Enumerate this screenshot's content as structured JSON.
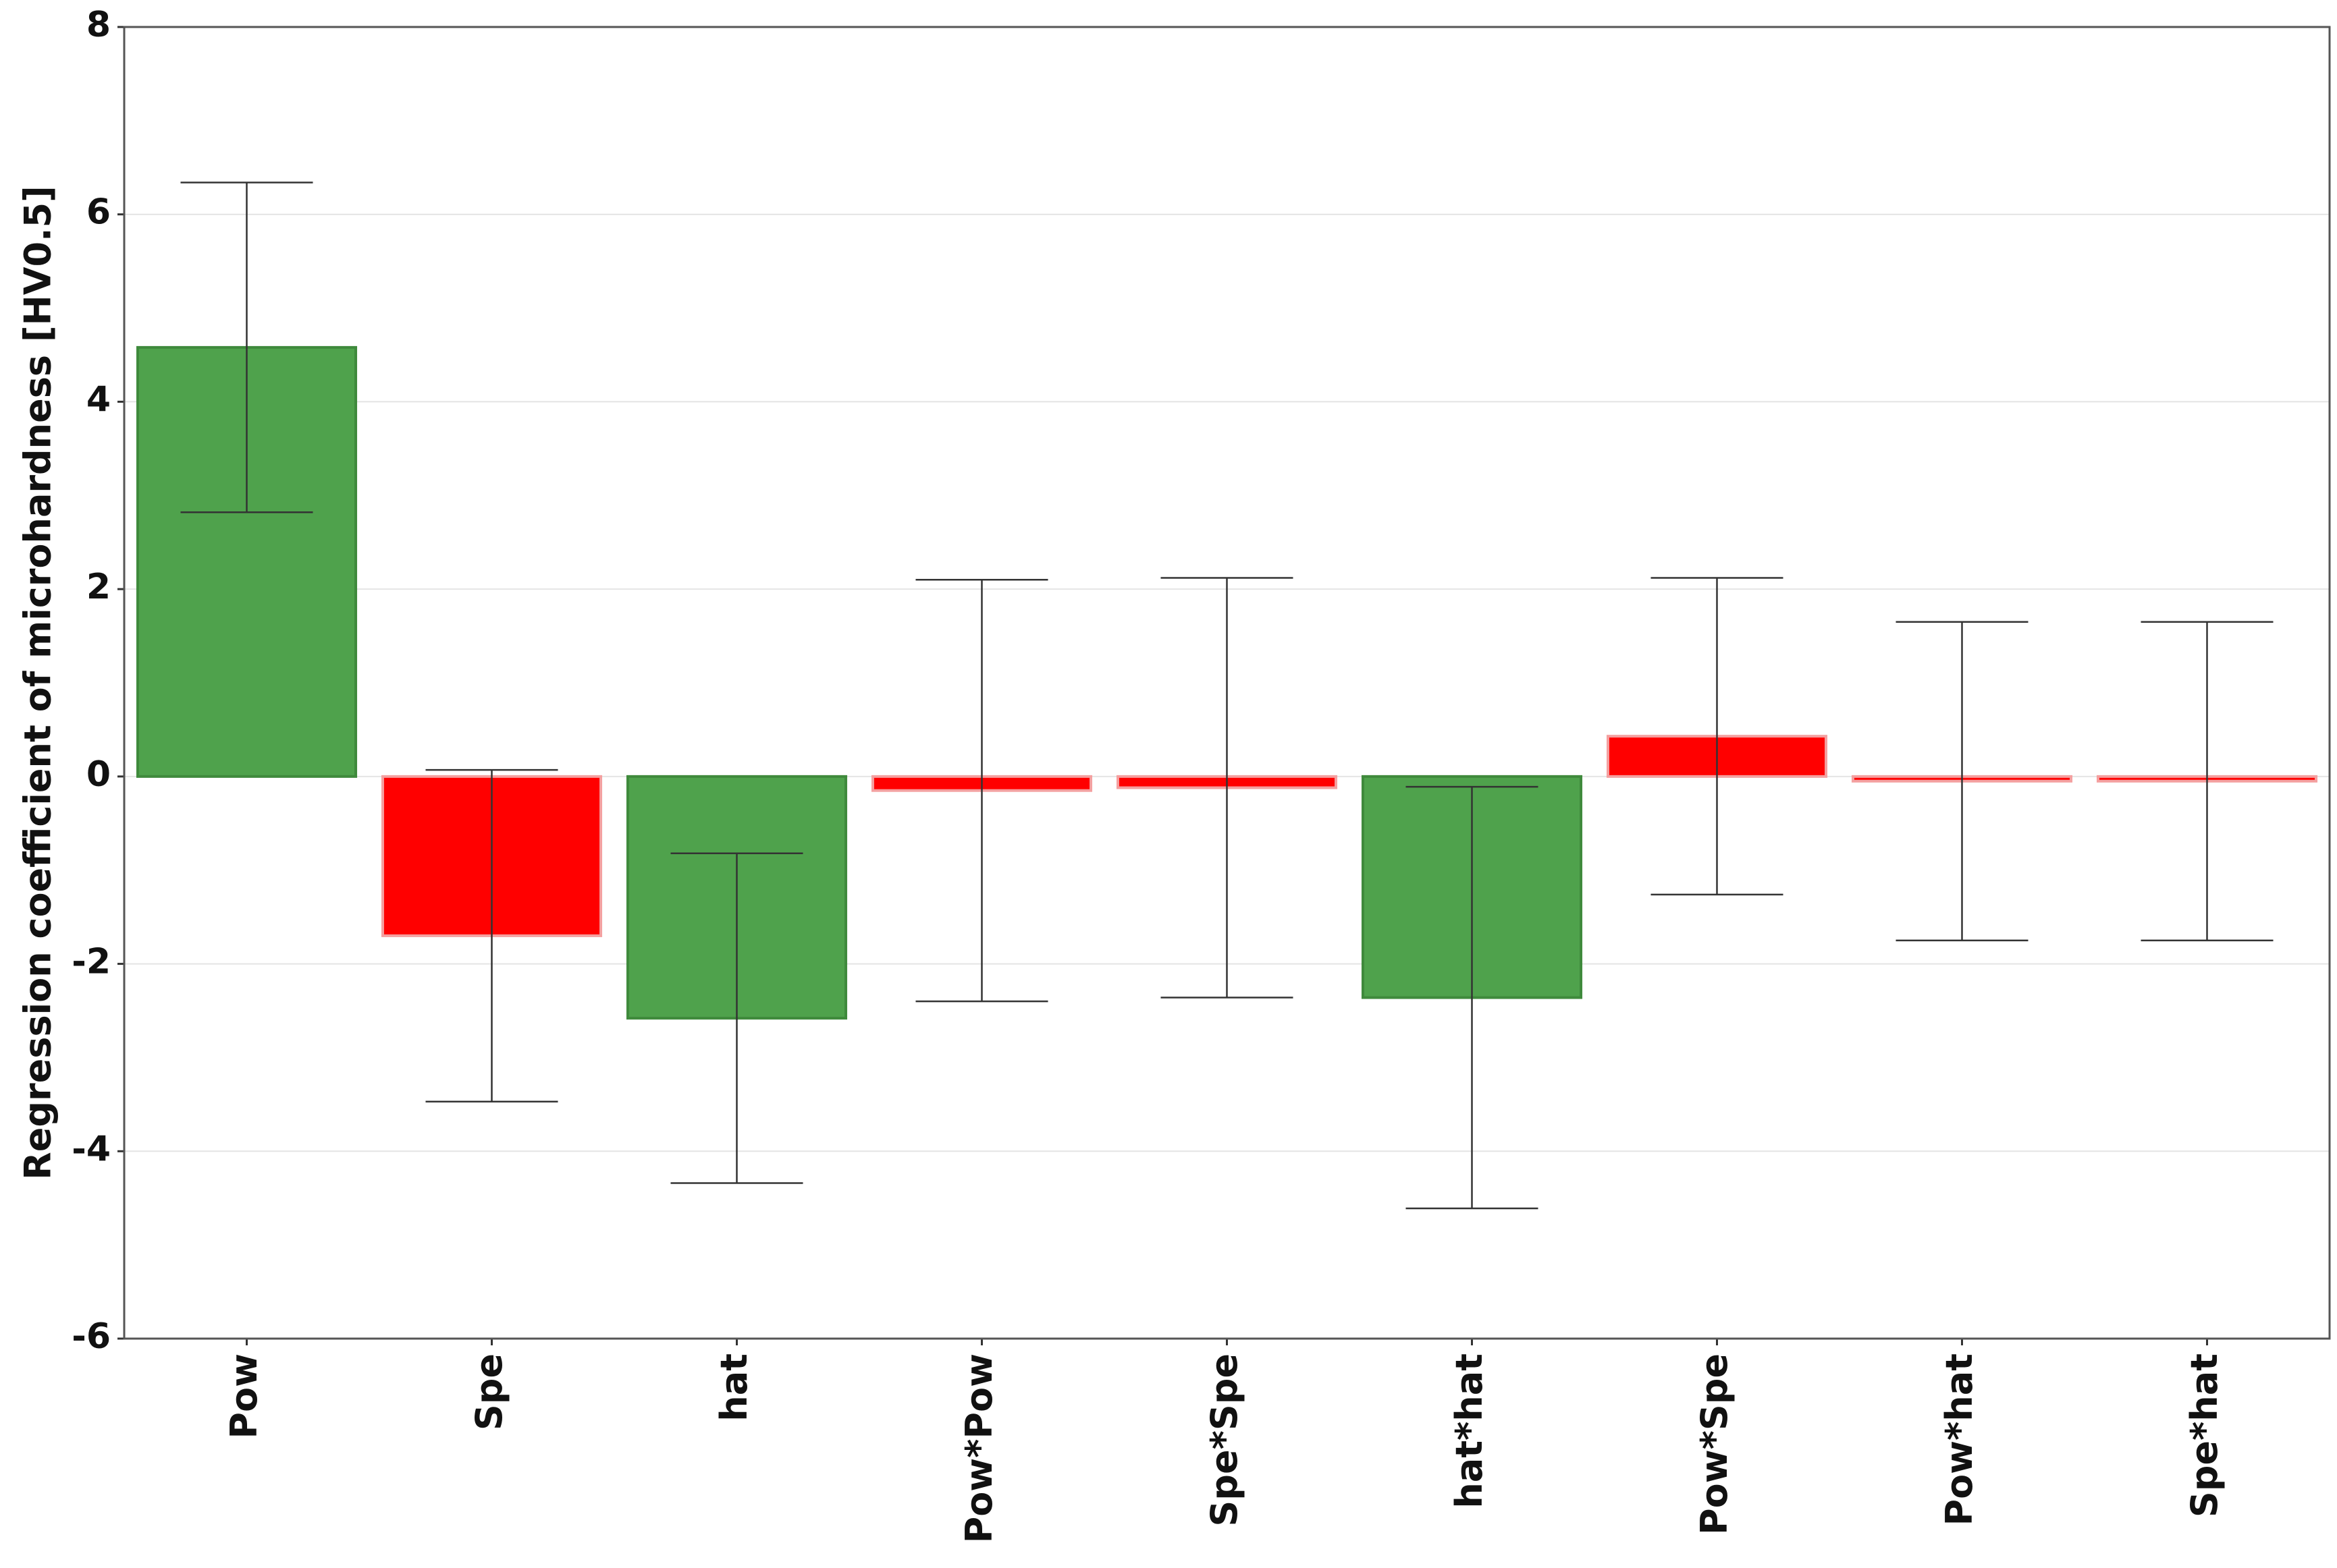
{
  "chart_data": {
    "type": "bar",
    "y_label": "Regression coefficient of microhardness [HV0.5]",
    "categories": [
      "Pow",
      "Spe",
      "hat",
      "Pow*Pow",
      "Spe*Spe",
      "hat*hat",
      "Pow*Spe",
      "Pow*hat",
      "Spe*hat"
    ],
    "values": [
      4.58,
      -1.7,
      -2.58,
      -0.15,
      -0.12,
      -2.36,
      0.43,
      -0.05,
      -0.05
    ],
    "errors": [
      1.76,
      1.77,
      1.76,
      2.25,
      2.24,
      2.25,
      1.69,
      1.7,
      1.7
    ],
    "colors": [
      "#4fa24c",
      "#ff0000",
      "#4fa24c",
      "#ff0000",
      "#ff0000",
      "#4fa24c",
      "#ff0000",
      "#ff0000",
      "#ff0000"
    ],
    "ylim": [
      -6,
      8
    ],
    "yticks": [
      -6,
      -4,
      -2,
      0,
      2,
      4,
      6,
      8
    ],
    "grid": true
  }
}
